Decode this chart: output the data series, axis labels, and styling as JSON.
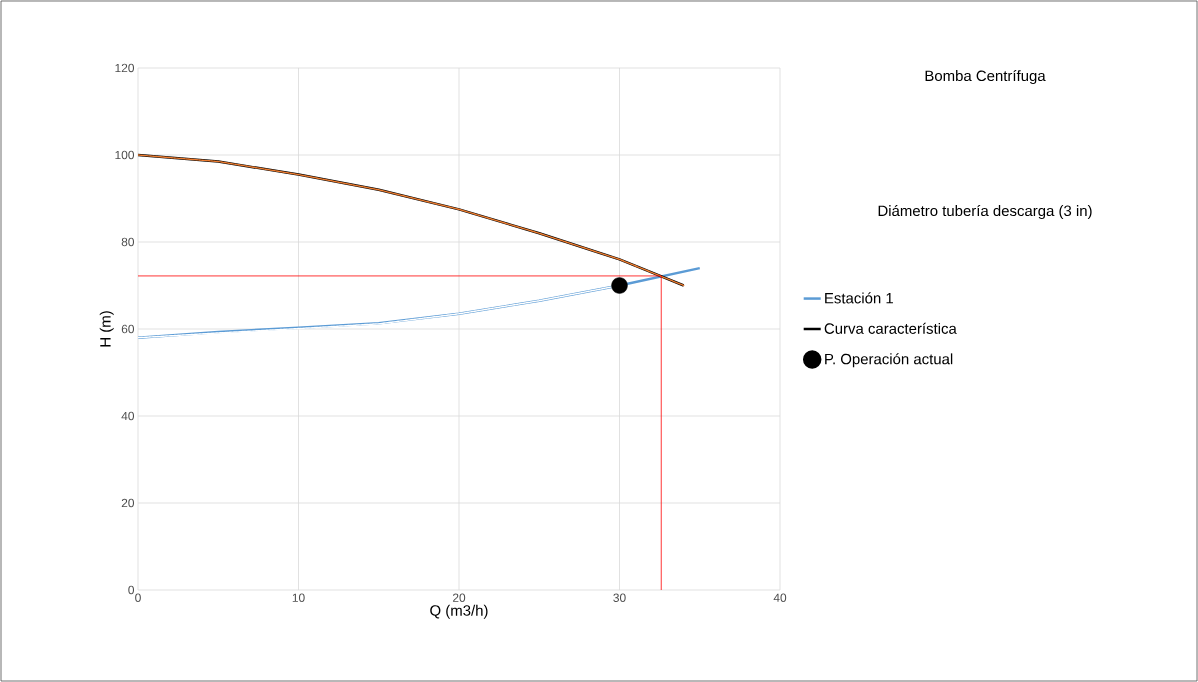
{
  "chart_data": {
    "type": "line",
    "xlabel": "Q (m3/h)",
    "ylabel": "H (m)",
    "xlim": [
      0,
      40
    ],
    "ylim": [
      0,
      120
    ],
    "xticks": [
      0,
      10,
      20,
      30,
      40
    ],
    "yticks": [
      0,
      20,
      40,
      60,
      80,
      100,
      120
    ],
    "grid": true,
    "legend": "right",
    "annotations": [
      "Bomba Centrífuga",
      "Diámetro tubería descarga (3 in)"
    ],
    "series": [
      {
        "name": "Estación 1",
        "color": "#5b9bd5",
        "x": [
          0,
          5,
          10,
          15,
          20,
          25,
          30,
          35
        ],
        "values": [
          58,
          59.3,
          60.3,
          61.3,
          63.5,
          66.5,
          70,
          74
        ]
      },
      {
        "color": "#ffffff",
        "line_style": "dotted",
        "x": [
          0,
          5,
          10,
          15,
          20,
          25,
          30
        ],
        "values": [
          58,
          59.1,
          60.1,
          61.2,
          63.5,
          66.5,
          70
        ]
      },
      {
        "name": "Curva característica",
        "color": "#000000",
        "x": [
          0,
          5,
          10,
          15,
          20,
          25,
          30,
          32,
          34
        ],
        "values": [
          100,
          98.5,
          95.5,
          92,
          87.5,
          82,
          76,
          73,
          70
        ]
      },
      {
        "color": "#ed7d31",
        "line_style": "dotted",
        "x": [
          0,
          5,
          10,
          15,
          20,
          25,
          30,
          32,
          34
        ],
        "values": [
          100,
          98.5,
          95.5,
          92,
          87.5,
          82,
          76,
          73,
          70
        ]
      },
      {
        "color": "#ff0000",
        "x": [
          0,
          32.6,
          32.6
        ],
        "values": [
          72.2,
          72.2,
          0
        ]
      },
      {
        "name": "P. Operación actual",
        "type": "scatter",
        "marker": "circle",
        "color": "#000000",
        "x": [
          30
        ],
        "values": [
          70
        ]
      }
    ]
  }
}
